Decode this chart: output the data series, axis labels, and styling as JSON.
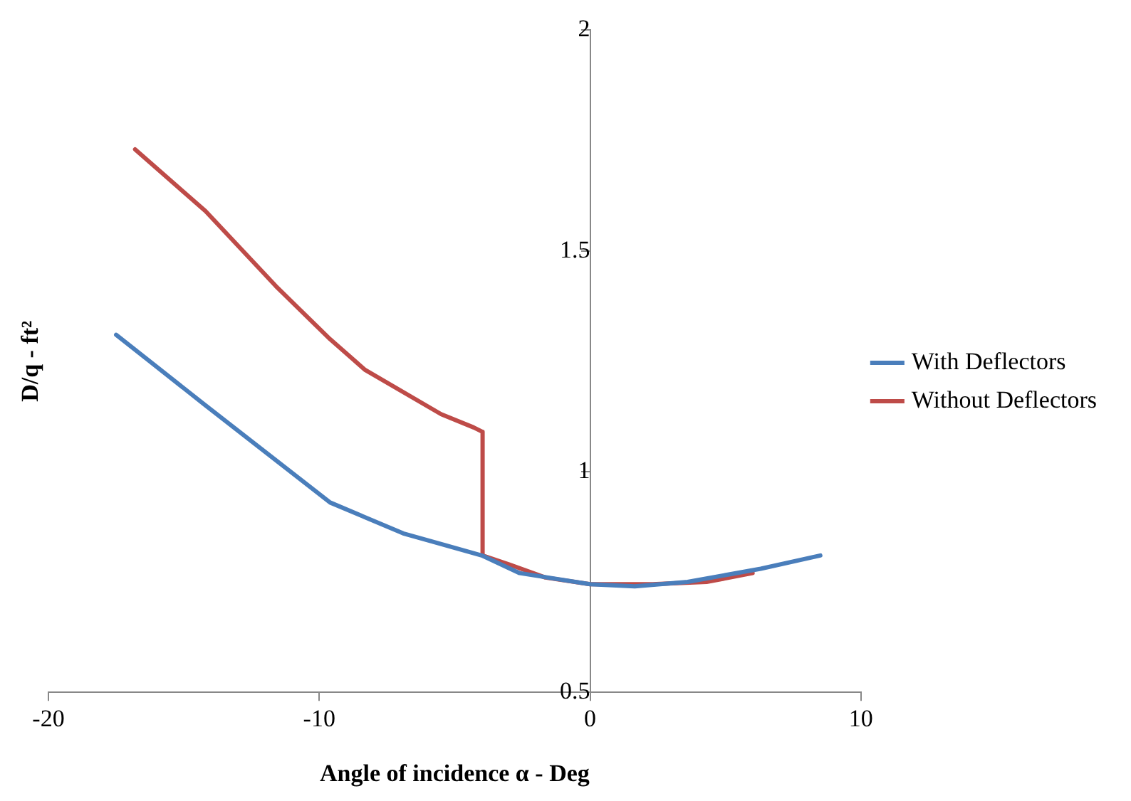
{
  "chart_data": {
    "type": "line",
    "xlabel": "Angle of incidence α - Deg",
    "ylabel": "D/q - ft²",
    "xlim": [
      -20,
      10
    ],
    "xticks": [
      -20,
      -10,
      0,
      10
    ],
    "ylim": [
      0.5,
      2
    ],
    "yticks": [
      0.5,
      1,
      1.5,
      2
    ],
    "grid": false,
    "legend": "right",
    "marker": "none",
    "series": [
      {
        "name": "With Deflectors",
        "color": "#4a7ebb",
        "x": [
          -17.5,
          -14.2,
          -9.6,
          -6.9,
          -4.0,
          -2.6,
          0,
          1.65,
          3.6,
          6.3,
          8.5
        ],
        "values": [
          1.31,
          1.15,
          0.93,
          0.86,
          0.81,
          0.77,
          0.745,
          0.74,
          0.75,
          0.78,
          0.81
        ]
      },
      {
        "name": "Without Deflectors",
        "color": "#be4b48",
        "x": [
          -16.8,
          -14.2,
          -11.6,
          -9.6,
          -8.3,
          -5.5,
          -4.3,
          -3.97,
          -3.97,
          -3.0,
          -1.65,
          0,
          2.3,
          4.3,
          6.0
        ],
        "values": [
          1.73,
          1.59,
          1.42,
          1.3,
          1.23,
          1.13,
          1.1,
          1.09,
          0.81,
          0.79,
          0.76,
          0.745,
          0.745,
          0.75,
          0.77
        ]
      }
    ]
  }
}
